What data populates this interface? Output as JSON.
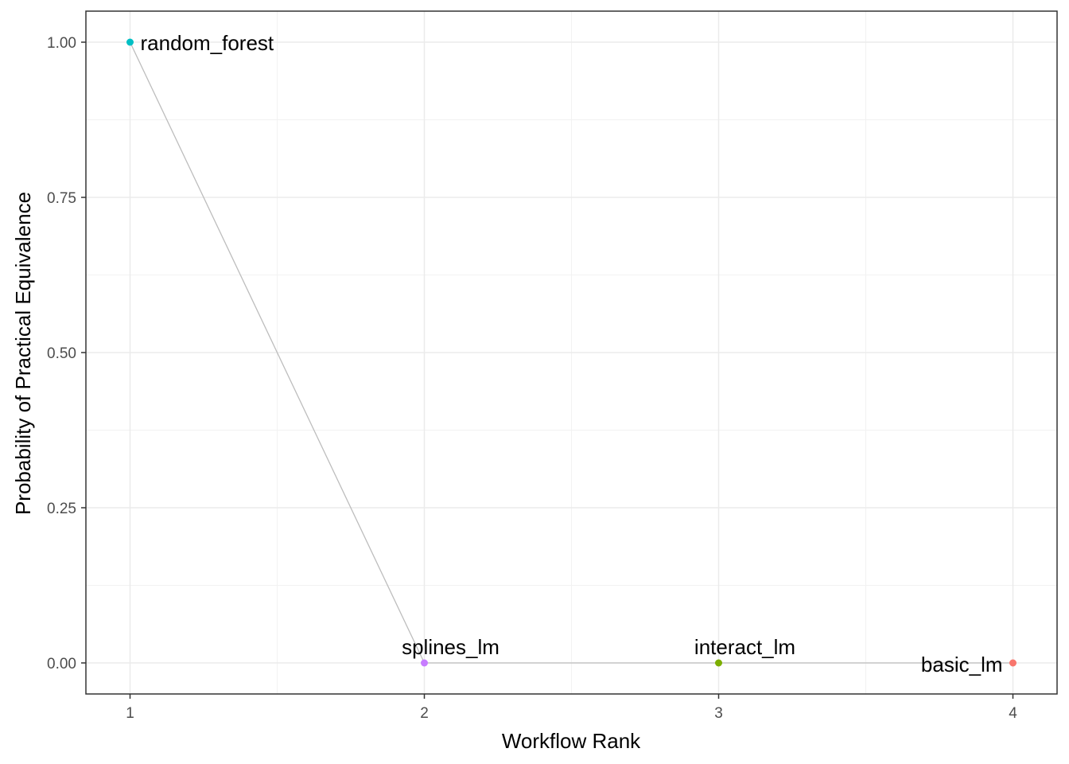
{
  "chart_data": {
    "type": "scatter",
    "title": "",
    "xlabel": "Workflow Rank",
    "ylabel": "Probability of Practical Equivalence",
    "xlim": [
      0.85,
      4.15
    ],
    "ylim": [
      -0.05,
      1.05
    ],
    "x_ticks": [
      1,
      2,
      3,
      4
    ],
    "x_tick_labels": [
      "1",
      "2",
      "3",
      "4"
    ],
    "y_ticks": [
      0,
      0.25,
      0.5,
      0.75,
      1
    ],
    "y_tick_labels": [
      "0.00",
      "0.25",
      "0.50",
      "0.75",
      "1.00"
    ],
    "grid": true,
    "legend": "none",
    "connecting_line_color": "#bdbdbd",
    "points": [
      {
        "x": 1,
        "y": 1.0,
        "label": "random_forest",
        "color": "#00BFC4",
        "label_position": "right"
      },
      {
        "x": 2,
        "y": 0.0,
        "label": "splines_lm",
        "color": "#C77CFF",
        "label_position": "above"
      },
      {
        "x": 3,
        "y": 0.0,
        "label": "interact_lm",
        "color": "#7CAE00",
        "label_position": "above"
      },
      {
        "x": 4,
        "y": 0.0,
        "label": "basic_lm",
        "color": "#F8766D",
        "label_position": "left"
      }
    ]
  }
}
